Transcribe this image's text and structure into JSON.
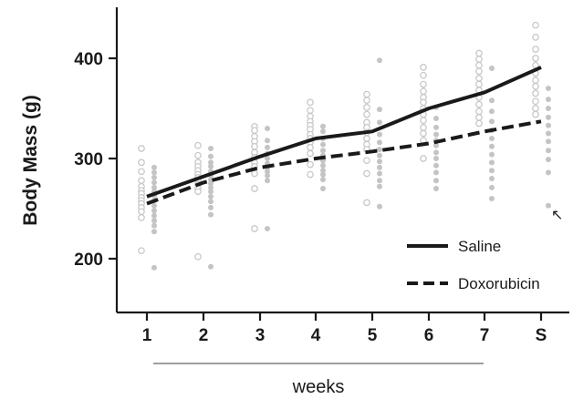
{
  "chart_data": {
    "type": "line",
    "title": "",
    "xlabel": "weeks",
    "ylabel": "Body Mass (g)",
    "categories": [
      "1",
      "2",
      "3",
      "4",
      "5",
      "6",
      "7",
      "S"
    ],
    "ylim": [
      180,
      450
    ],
    "yticks": [
      200,
      300,
      400
    ],
    "legend_position": "bottom-right",
    "series": [
      {
        "name": "Saline",
        "style": "solid",
        "color": "#1a1a1a",
        "values": [
          262,
          282,
          302,
          320,
          327,
          350,
          366,
          391
        ]
      },
      {
        "name": "Doxorubicin",
        "style": "dashed",
        "color": "#1a1a1a",
        "values": [
          255,
          276,
          291,
          300,
          307,
          315,
          327,
          337
        ]
      }
    ],
    "individual_points": {
      "saline": [
        [
          310,
          296,
          287,
          278,
          272,
          268,
          265,
          261,
          258,
          255,
          251,
          247,
          241,
          208
        ],
        [
          313,
          303,
          296,
          292,
          288,
          284,
          281,
          278,
          274,
          270,
          267,
          202
        ],
        [
          332,
          328,
          322,
          317,
          312,
          306,
          301,
          296,
          292,
          285,
          270,
          230
        ],
        [
          356,
          348,
          342,
          337,
          333,
          329,
          324,
          320,
          316,
          311,
          305,
          294,
          284
        ],
        [
          364,
          358,
          351,
          344,
          336,
          331,
          326,
          320,
          314,
          309,
          298,
          285,
          256
        ],
        [
          391,
          383,
          374,
          367,
          361,
          356,
          350,
          344,
          338,
          331,
          325,
          318,
          300
        ],
        [
          405,
          399,
          393,
          387,
          380,
          374,
          368,
          361,
          354,
          347,
          341,
          335
        ],
        [
          433,
          421,
          409,
          400,
          393,
          385,
          378,
          372,
          365,
          357,
          350,
          344
        ]
      ],
      "doxorubicin": [
        [
          291,
          286,
          281,
          276,
          271,
          267,
          263,
          258,
          253,
          248,
          243,
          238,
          233,
          227,
          191
        ],
        [
          310,
          302,
          296,
          292,
          287,
          283,
          279,
          275,
          271,
          267,
          262,
          257,
          251,
          244,
          192
        ],
        [
          330,
          318,
          311,
          305,
          300,
          295,
          291,
          287,
          283,
          278,
          230
        ],
        [
          332,
          327,
          320,
          314,
          308,
          303,
          298,
          293,
          288,
          284,
          279,
          270
        ],
        [
          398,
          349,
          336,
          324,
          316,
          309,
          303,
          297,
          291,
          285,
          278,
          272,
          252
        ],
        [
          351,
          340,
          331,
          324,
          318,
          313,
          306,
          300,
          293,
          286,
          278,
          270
        ],
        [
          390,
          358,
          347,
          337,
          328,
          320,
          312,
          304,
          296,
          288,
          280,
          271,
          260
        ],
        [
          370,
          359,
          350,
          341,
          333,
          325,
          317,
          308,
          299,
          286,
          253
        ]
      ]
    },
    "annotations": [
      "↖"
    ],
    "colors": {
      "axis": "#1a1a1a",
      "open_point": "#c8c8c8",
      "filled_point": "#c4c4c4"
    }
  }
}
